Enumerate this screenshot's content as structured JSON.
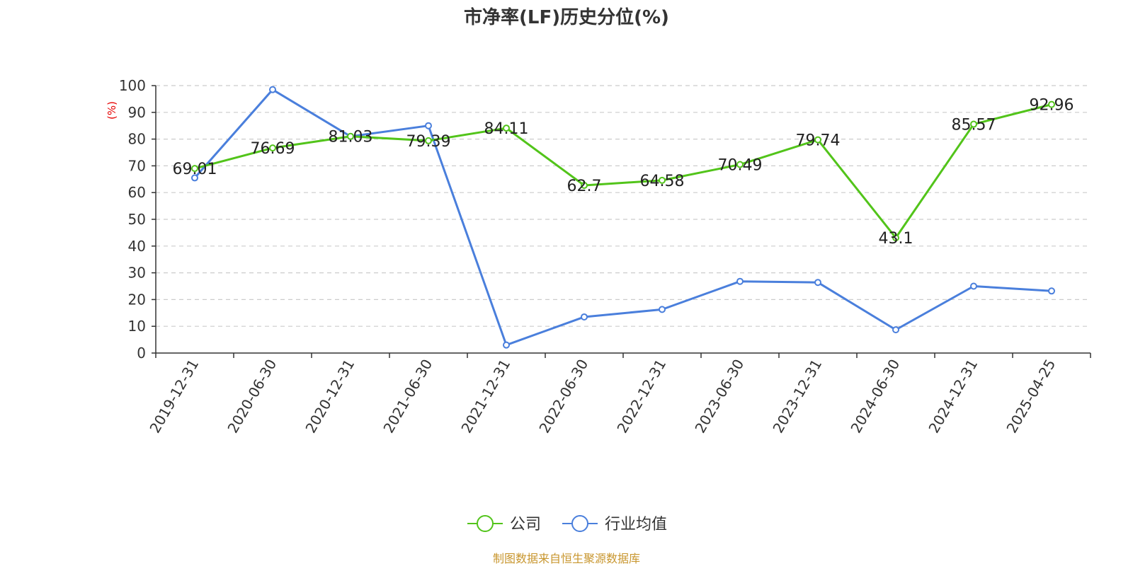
{
  "chart_data": {
    "type": "line",
    "title": "市净率(LF)历史分位(%)",
    "ylabel": "(%)",
    "ylim": [
      0,
      100
    ],
    "yticks": [
      0,
      10,
      20,
      30,
      40,
      50,
      60,
      70,
      80,
      90,
      100
    ],
    "grid": true,
    "legend_position": "bottom",
    "categories": [
      "2019-12-31",
      "2020-06-30",
      "2020-12-31",
      "2021-06-30",
      "2021-12-31",
      "2022-06-30",
      "2022-12-31",
      "2023-06-30",
      "2023-12-31",
      "2024-06-30",
      "2024-12-31",
      "2025-04-25"
    ],
    "series": [
      {
        "name": "公司",
        "color": "#52c41a",
        "values": [
          69.01,
          76.69,
          81.03,
          79.39,
          84.11,
          62.7,
          64.58,
          70.49,
          79.74,
          43.1,
          85.57,
          92.96
        ],
        "labels": [
          "69.01",
          "76.69",
          "81.03",
          "79.39",
          "84.11",
          "62.7",
          "64.58",
          "70.49",
          "79.74",
          "43.1",
          "85.57",
          "92.96"
        ]
      },
      {
        "name": "行业均值",
        "color": "#4a7fdc",
        "values": [
          65.5,
          98.5,
          81.0,
          85.0,
          3.0,
          13.5,
          16.3,
          26.8,
          26.4,
          8.7,
          25.0,
          23.2
        ]
      }
    ],
    "source": "制图数据来自恒生聚源数据库"
  }
}
